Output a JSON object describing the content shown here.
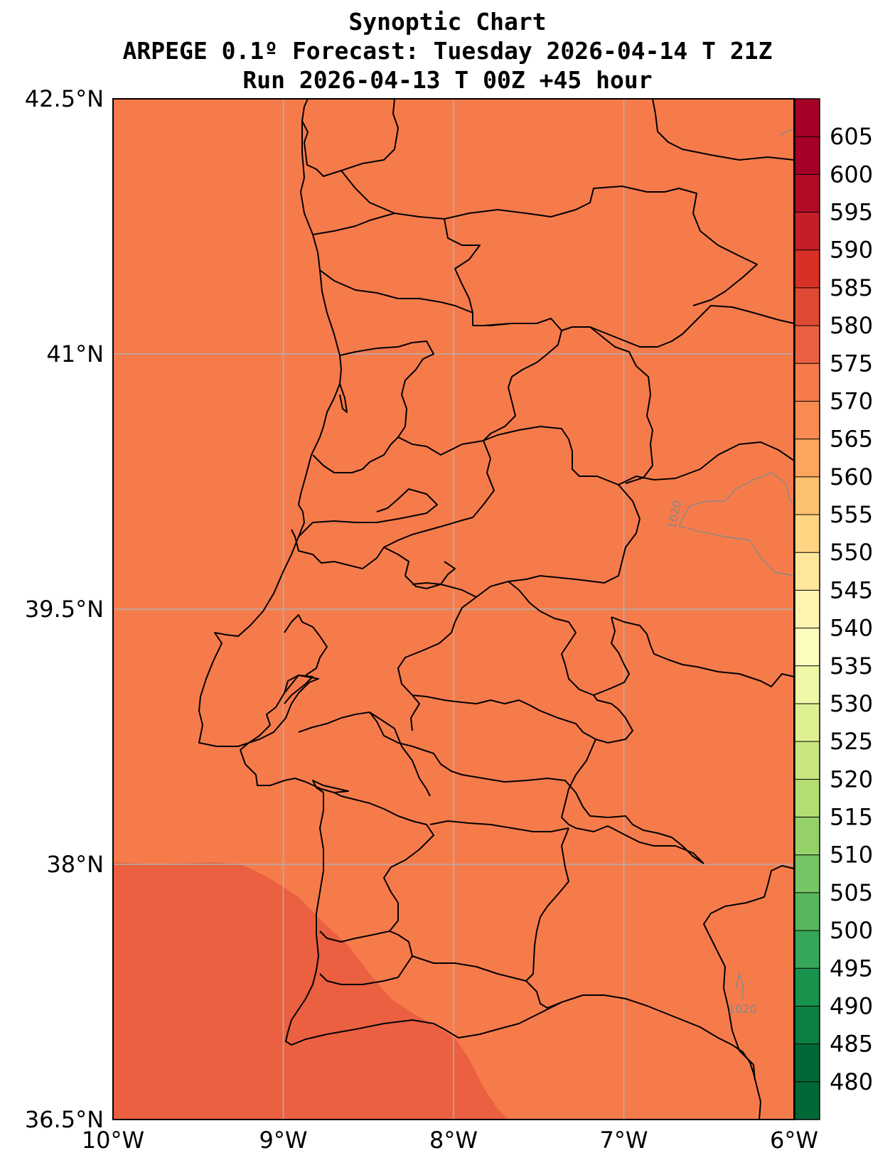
{
  "title": {
    "line1": "Synoptic Chart",
    "line2": "ARPEGE 0.1º Forecast: Tuesday 2026-04-14 T 21Z",
    "line3": "Run 2026-04-13 T 00Z +45 hour"
  },
  "map": {
    "lon_range": [
      -10,
      -6
    ],
    "lat_range": [
      36.5,
      42.5
    ],
    "lon_ticks": [
      {
        "value": -10,
        "label": "10°W"
      },
      {
        "value": -9,
        "label": "9°W"
      },
      {
        "value": -8,
        "label": "8°W"
      },
      {
        "value": -7,
        "label": "7°W"
      },
      {
        "value": -6,
        "label": "6°W"
      }
    ],
    "lat_ticks": [
      {
        "value": 42.5,
        "label": "42.5°N"
      },
      {
        "value": 41,
        "label": "41°N"
      },
      {
        "value": 39.5,
        "label": "39.5°N"
      },
      {
        "value": 38,
        "label": "38°N"
      },
      {
        "value": 36.5,
        "label": "36.5°N"
      }
    ],
    "grid": true,
    "fill_main_color": "#f67b4b",
    "fill_southwest_color": "#ea6040",
    "isobar_labels": [
      "1020",
      "1020"
    ],
    "isobar_color": "#888888"
  },
  "colorbar": {
    "levels": [
      480,
      485,
      490,
      495,
      500,
      505,
      510,
      515,
      520,
      525,
      530,
      535,
      540,
      545,
      550,
      555,
      560,
      565,
      570,
      575,
      580,
      585,
      590,
      595,
      600,
      605
    ],
    "colors": [
      "#006837",
      "#0c7f43",
      "#17934e",
      "#36a659",
      "#57b65f",
      "#75c465",
      "#94d168",
      "#b3df72",
      "#c8e680",
      "#ddf091",
      "#eef8a6",
      "#fcfdbf",
      "#fff3b0",
      "#fee79a",
      "#fed683",
      "#fdc070",
      "#fca55d",
      "#f88b51",
      "#f67b4b",
      "#ea6040",
      "#df4a34",
      "#d73027",
      "#c41f26",
      "#b10b26",
      "#a50026"
    ]
  }
}
